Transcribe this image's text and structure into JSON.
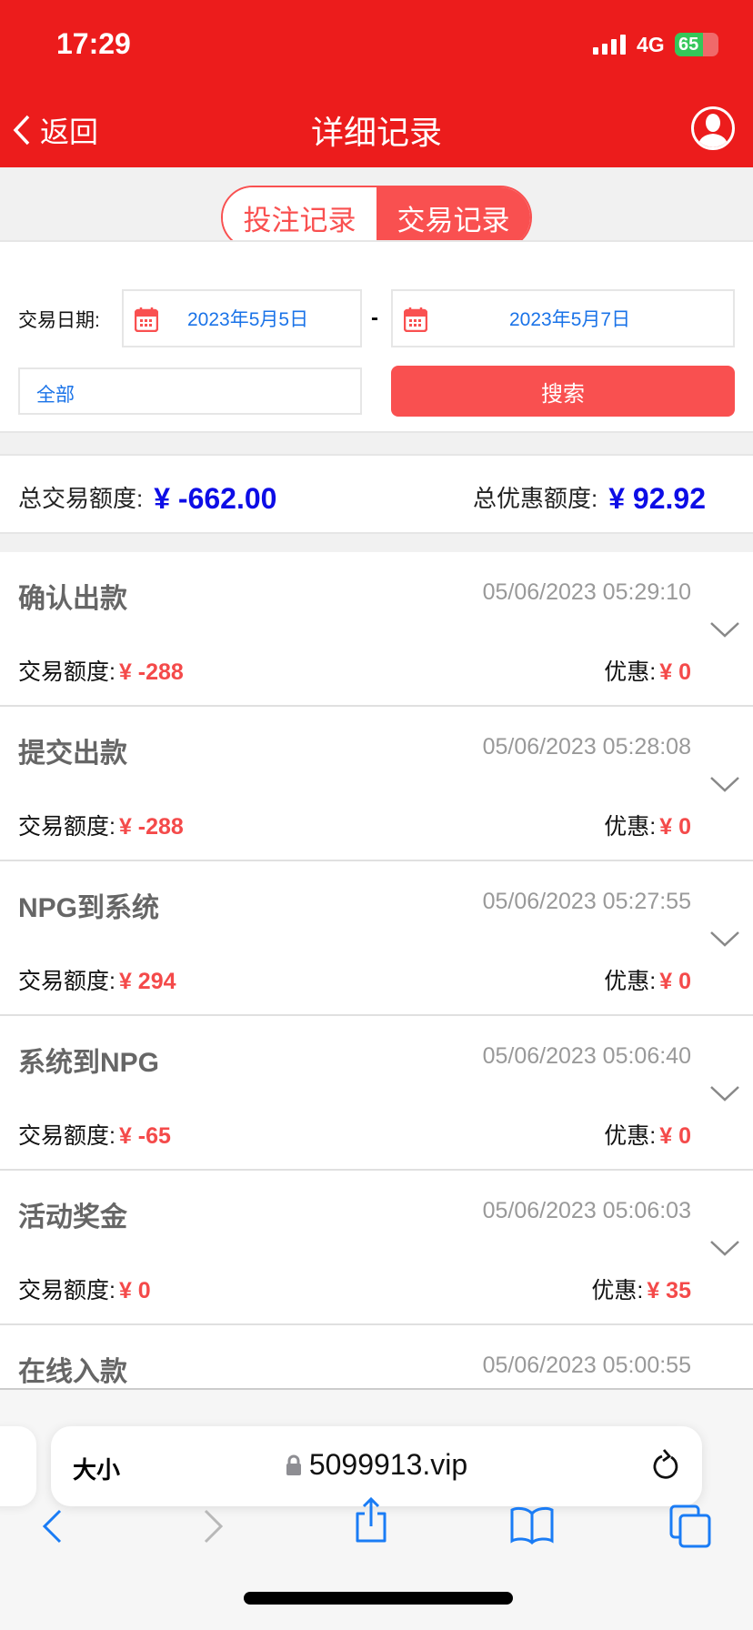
{
  "status": {
    "time": "17:29",
    "network": "4G",
    "battery": "65",
    "battery_level": 65
  },
  "header": {
    "back_label": "返回",
    "title": "详细记录"
  },
  "tabs": [
    {
      "label": "投注记录",
      "active": false
    },
    {
      "label": "交易记录",
      "active": true
    }
  ],
  "filters": {
    "date_label": "交易日期:",
    "start_date": "2023年5月5日",
    "separator": "-",
    "end_date": "2023年5月7日",
    "type_value": "全部",
    "search_label": "搜索"
  },
  "summary": {
    "total_label": "总交易额度:",
    "total_value": "¥ -662.00",
    "discount_label": "总优惠额度:",
    "discount_value": "¥ 92.92"
  },
  "records": [
    {
      "name": "确认出款",
      "time": "05/06/2023 05:29:10",
      "amount_label": "交易额度:",
      "amount": "¥ -288",
      "discount_label": "优惠:",
      "discount": "¥ 0"
    },
    {
      "name": "提交出款",
      "time": "05/06/2023 05:28:08",
      "amount_label": "交易额度:",
      "amount": "¥ -288",
      "discount_label": "优惠:",
      "discount": "¥ 0"
    },
    {
      "name": "NPG到系统",
      "time": "05/06/2023 05:27:55",
      "amount_label": "交易额度:",
      "amount": "¥ 294",
      "discount_label": "优惠:",
      "discount": "¥ 0"
    },
    {
      "name": "系统到NPG",
      "time": "05/06/2023 05:06:40",
      "amount_label": "交易额度:",
      "amount": "¥ -65",
      "discount_label": "优惠:",
      "discount": "¥ 0"
    },
    {
      "name": "活动奖金",
      "time": "05/06/2023 05:06:03",
      "amount_label": "交易额度:",
      "amount": "¥ 0",
      "discount_label": "优惠:",
      "discount": "¥ 35"
    },
    {
      "name": "在线入款",
      "time": "05/06/2023 05:00:55"
    }
  ],
  "browser": {
    "text_size_label": "大小",
    "url": "5099913.vip"
  },
  "colors": {
    "header": "#ec1c1c",
    "accent": "#f95050",
    "blue_value": "#0d0de6",
    "link_blue": "#1a73e8"
  }
}
